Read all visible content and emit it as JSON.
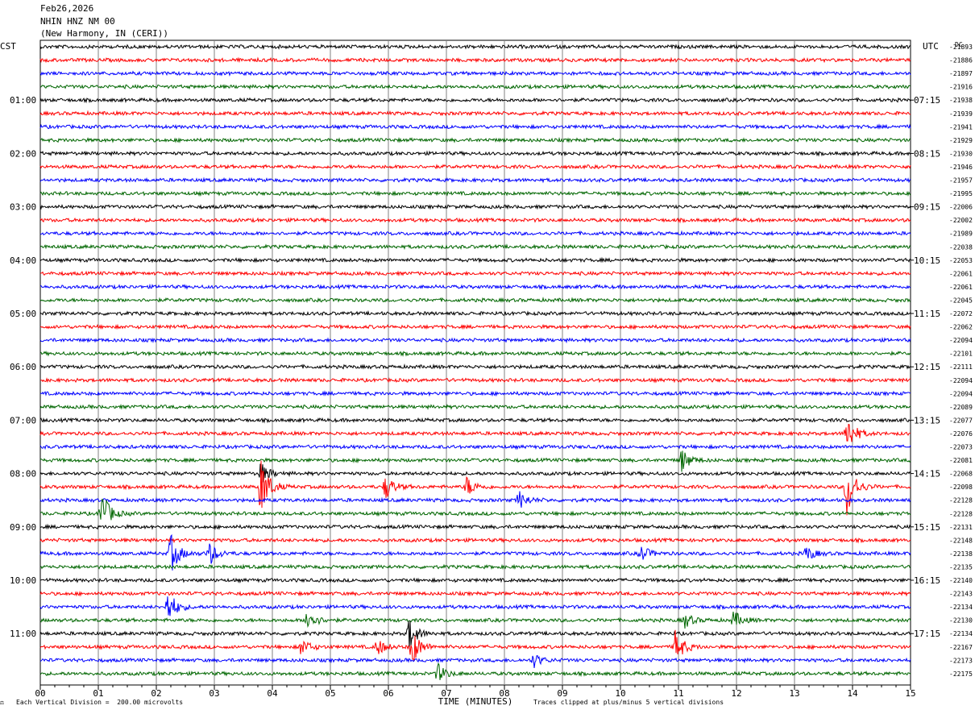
{
  "header": {
    "date": "Feb26,2026",
    "station": "NHIN HNZ NM 00",
    "location": "(New Harmony, IN (CERI))"
  },
  "labels": {
    "left_tz": "CST",
    "right_tz": "UTC",
    "dc_header": "DC"
  },
  "footer": {
    "scale_note": "Each Vertical Division =  200.00 microvolts",
    "clip_note": "Traces clipped at plus/minus 5 vertical divisions",
    "x_title": "TIME (MINUTES)"
  },
  "colors": {
    "black": "#000000",
    "red": "#ff0000",
    "blue": "#0000ff",
    "green": "#006600",
    "grid": "#808080"
  },
  "chart_data": {
    "type": "line",
    "title": "",
    "xlabel": "TIME (MINUTES)",
    "xlim": [
      0,
      15
    ],
    "x_ticks": [
      "00",
      "01",
      "02",
      "03",
      "04",
      "05",
      "06",
      "07",
      "08",
      "09",
      "10",
      "11",
      "12",
      "13",
      "14",
      "15"
    ],
    "trace_colors": [
      "black",
      "red",
      "blue",
      "green"
    ],
    "left_time_labels": [
      "01:00",
      "02:00",
      "03:00",
      "04:00",
      "05:00",
      "06:00",
      "07:00",
      "08:00",
      "09:00",
      "10:00",
      "11:00"
    ],
    "right_time_labels": [
      "07:15",
      "08:15",
      "09:15",
      "10:15",
      "11:15",
      "12:15",
      "13:15",
      "14:15",
      "15:15",
      "16:15",
      "17:15"
    ],
    "dc_offsets": [
      "-21893",
      "-21886",
      "-21897",
      "-21916",
      "-21938",
      "-21939",
      "-21941",
      "-21929",
      "-21930",
      "-21946",
      "-21957",
      "-21995",
      "-22006",
      "-22002",
      "-21989",
      "-22038",
      "-22053",
      "-22061",
      "-22061",
      "-22045",
      "-22072",
      "-22062",
      "-22094",
      "-22101",
      "-22111",
      "-22094",
      "-22094",
      "-22089",
      "-22077",
      "-22076",
      "-22073",
      "-22081",
      "-22068",
      "-22098",
      "-22128",
      "-22128",
      "-22131",
      "-22148",
      "-22138",
      "-22135",
      "-22140",
      "-22143",
      "-22134",
      "-22130",
      "-22134",
      "-22167",
      "-22173",
      "-22175"
    ],
    "events": [
      {
        "trace": 29,
        "minute": 13.9,
        "amp": 2.5
      },
      {
        "trace": 31,
        "minute": 11.05,
        "amp": 1.5
      },
      {
        "trace": 32,
        "minute": 3.8,
        "amp": 1.4
      },
      {
        "trace": 33,
        "minute": 3.8,
        "amp": 4.0
      },
      {
        "trace": 33,
        "minute": 13.9,
        "amp": 4.0
      },
      {
        "trace": 33,
        "minute": 5.95,
        "amp": 1.6
      },
      {
        "trace": 33,
        "minute": 7.35,
        "amp": 1.3
      },
      {
        "trace": 34,
        "minute": 8.25,
        "amp": 1.2
      },
      {
        "trace": 35,
        "minute": 1.05,
        "amp": 3.0
      },
      {
        "trace": 38,
        "minute": 2.25,
        "amp": 2.5
      },
      {
        "trace": 38,
        "minute": 2.9,
        "amp": 1.6
      },
      {
        "trace": 38,
        "minute": 10.35,
        "amp": 1.1
      },
      {
        "trace": 38,
        "minute": 13.2,
        "amp": 1.0
      },
      {
        "trace": 42,
        "minute": 2.2,
        "amp": 2.2
      },
      {
        "trace": 43,
        "minute": 4.6,
        "amp": 1.6
      },
      {
        "trace": 43,
        "minute": 11.1,
        "amp": 1.0
      },
      {
        "trace": 43,
        "minute": 11.95,
        "amp": 1.1
      },
      {
        "trace": 44,
        "minute": 6.35,
        "amp": 2.0
      },
      {
        "trace": 45,
        "minute": 6.4,
        "amp": 2.5
      },
      {
        "trace": 45,
        "minute": 10.95,
        "amp": 2.2
      },
      {
        "trace": 45,
        "minute": 4.5,
        "amp": 1.1
      },
      {
        "trace": 45,
        "minute": 5.8,
        "amp": 1.1
      },
      {
        "trace": 46,
        "minute": 8.5,
        "amp": 0.9
      },
      {
        "trace": 47,
        "minute": 6.85,
        "amp": 1.2
      }
    ]
  }
}
